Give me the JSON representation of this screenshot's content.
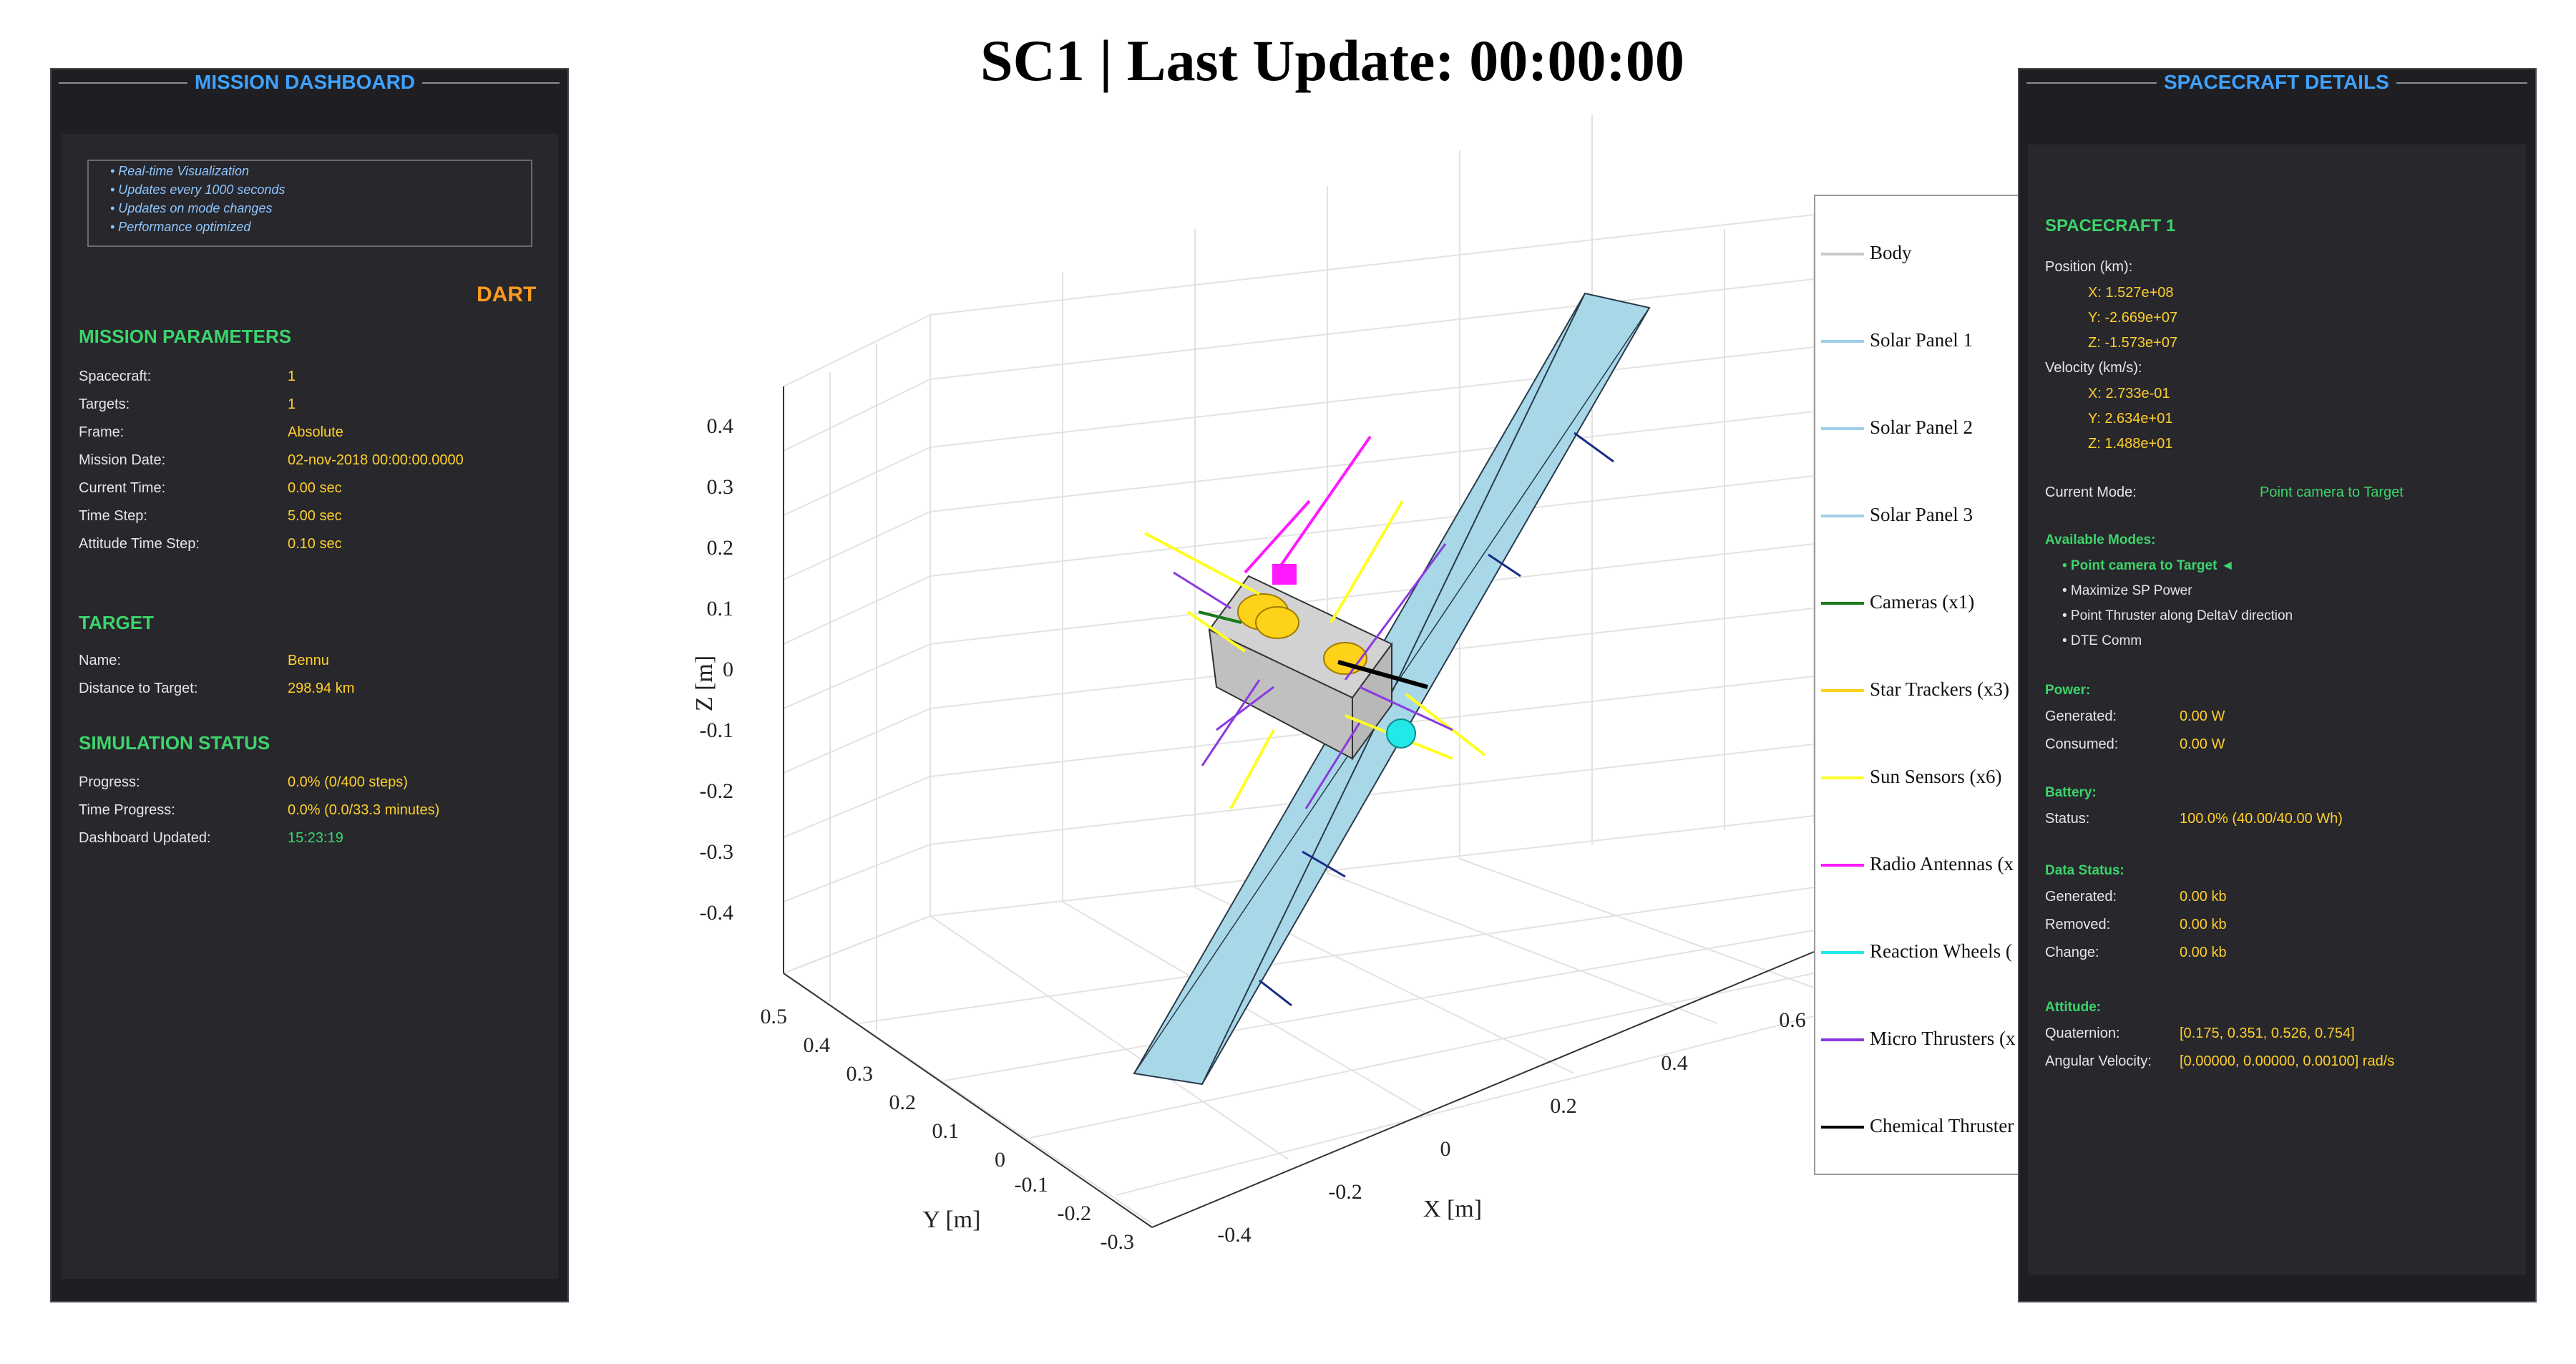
{
  "title": "SC1 | Last Update: 00:00:00",
  "left_panel": {
    "title": "MISSION DASHBOARD",
    "info": [
      "• Real-time Visualization",
      "• Updates every 1000 seconds",
      "• Updates on mode changes",
      "• Performance optimized"
    ],
    "mission_name": "DART",
    "mission_parameters": {
      "heading": "MISSION PARAMETERS",
      "rows": [
        {
          "label": "Spacecraft:",
          "value": "1"
        },
        {
          "label": "Targets:",
          "value": "1"
        },
        {
          "label": "Frame:",
          "value": "Absolute"
        },
        {
          "label": "Mission Date:",
          "value": "02-nov-2018 00:00:00.0000"
        },
        {
          "label": "Current Time:",
          "value": "0.00 sec"
        },
        {
          "label": "Time Step:",
          "value": "5.00 sec"
        },
        {
          "label": "Attitude Time Step:",
          "value": "0.10 sec"
        }
      ]
    },
    "target": {
      "heading": "TARGET",
      "rows": [
        {
          "label": "Name:",
          "value": "Bennu"
        },
        {
          "label": "Distance to Target:",
          "value": "298.94 km"
        }
      ]
    },
    "simulation_status": {
      "heading": "SIMULATION STATUS",
      "rows": [
        {
          "label": "Progress:",
          "value": "0.0% (0/400 steps)"
        },
        {
          "label": "Time Progress:",
          "value": "0.0% (0.0/33.3 minutes)"
        },
        {
          "label": "Dashboard Updated:",
          "value": "15:23:19"
        }
      ]
    }
  },
  "right_panel": {
    "title": "SPACECRAFT DETAILS",
    "spacecraft_heading": "SPACECRAFT 1",
    "position_label": "Position (km):",
    "position": [
      "X: 1.527e+08",
      "Y: -2.669e+07",
      "Z: -1.573e+07"
    ],
    "velocity_label": "Velocity (km/s):",
    "velocity": [
      "X: 2.733e-01",
      "Y: 2.634e+01",
      "Z: 1.488e+01"
    ],
    "current_mode_label": "Current Mode:",
    "current_mode_value": "Point camera to Target",
    "available_modes_heading": "Available Modes:",
    "modes": [
      "• Point camera to Target ◄",
      "• Maximize SP Power",
      "• Point Thruster along DeltaV direction",
      "• DTE Comm"
    ],
    "power": {
      "heading": "Power:",
      "rows": [
        {
          "label": "Generated:",
          "value": "0.00 W"
        },
        {
          "label": "Consumed:",
          "value": "0.00 W"
        }
      ]
    },
    "battery": {
      "heading": "Battery:",
      "rows": [
        {
          "label": "Status:",
          "value": "100.0% (40.00/40.00 Wh)"
        }
      ]
    },
    "data_status": {
      "heading": "Data Status:",
      "rows": [
        {
          "label": "Generated:",
          "value": "0.00 kb"
        },
        {
          "label": "Removed:",
          "value": "0.00 kb"
        },
        {
          "label": "Change:",
          "value": "0.00 kb"
        }
      ]
    },
    "attitude": {
      "heading": "Attitude:",
      "rows": [
        {
          "label": "Quaternion:",
          "value": "[0.175, 0.351, 0.526, 0.754]"
        },
        {
          "label": "Angular Velocity:",
          "value": "[0.00000, 0.00000, 0.00100] rad/s"
        }
      ]
    }
  },
  "plot": {
    "z_label": "Z [m]",
    "y_label": "Y [m]",
    "x_label": "X [m]",
    "z_ticks": [
      "0.4",
      "0.3",
      "0.2",
      "0.1",
      "0",
      "-0.1",
      "-0.2",
      "-0.3",
      "-0.4"
    ],
    "y_ticks": [
      "0.5",
      "0.4",
      "0.3",
      "0.2",
      "0.1",
      "0",
      "-0.1",
      "-0.2",
      "-0.3"
    ],
    "x_ticks": [
      "-0.4",
      "-0.2",
      "0",
      "0.2",
      "0.4",
      "0.6"
    ],
    "legend": [
      {
        "label": "Body",
        "color": "#c8c8c8"
      },
      {
        "label": "Solar Panel 1",
        "color": "#9fd0e8"
      },
      {
        "label": "Solar Panel 2",
        "color": "#9fd0e8"
      },
      {
        "label": "Solar Panel 3",
        "color": "#9fd0e8"
      },
      {
        "label": "Cameras (x1)",
        "color": "#1a7a1a"
      },
      {
        "label": "Star Trackers (x3)",
        "color": "#ffd21a"
      },
      {
        "label": "Sun Sensors (x6)",
        "color": "#ffff22"
      },
      {
        "label": "Radio Antennas (x",
        "color": "#ff1aff"
      },
      {
        "label": "Reaction Wheels (",
        "color": "#22e8e8"
      },
      {
        "label": "Micro Thrusters (x",
        "color": "#8a3ae0"
      },
      {
        "label": "Chemical Thruster",
        "color": "#000000"
      }
    ]
  }
}
